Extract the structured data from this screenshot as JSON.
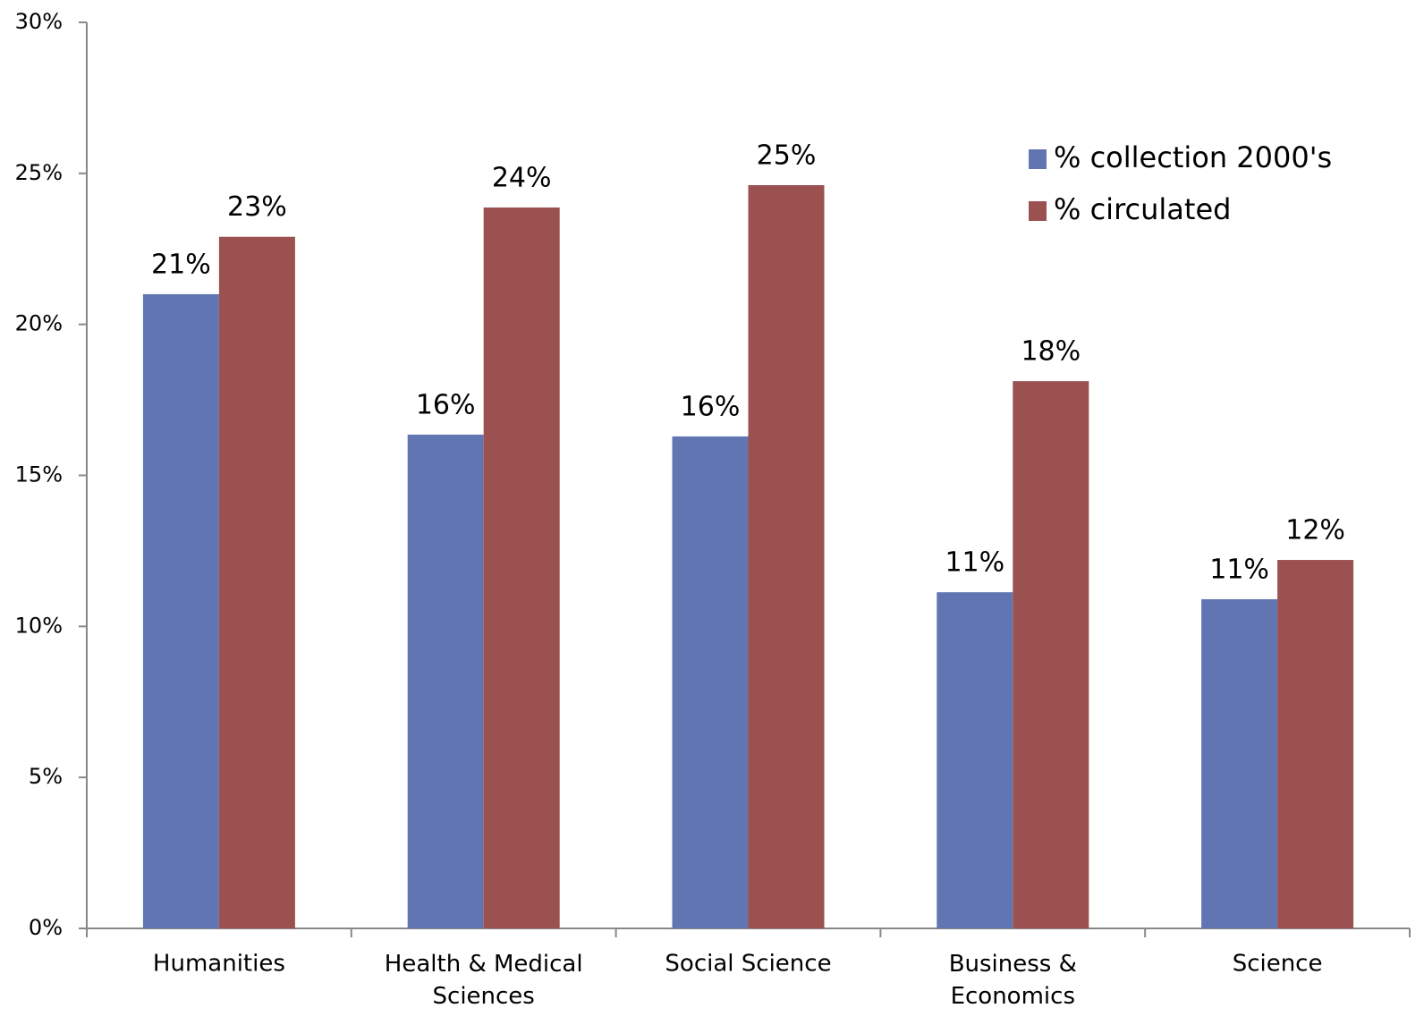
{
  "chart_data": {
    "type": "bar",
    "categories": [
      "Humanities",
      "Health & Medical Sciences",
      "Social Science",
      "Business & Economics",
      "Science"
    ],
    "series": [
      {
        "name": "% collection 2000's",
        "color": "#6175b3",
        "values": [
          21.0,
          16.35,
          16.29,
          11.13,
          10.9
        ],
        "value_labels": [
          "21%",
          "16%",
          "16%",
          "11%",
          "11%"
        ]
      },
      {
        "name": "% circulated",
        "color": "#9c5151",
        "values": [
          22.9,
          23.87,
          24.61,
          18.12,
          12.2
        ],
        "value_labels": [
          "23%",
          "24%",
          "25%",
          "18%",
          "12%"
        ]
      }
    ],
    "ylim": [
      0,
      30
    ],
    "yticks": [
      {
        "value": 0,
        "label": "0%"
      },
      {
        "value": 5,
        "label": "5%"
      },
      {
        "value": 10,
        "label": "10%"
      },
      {
        "value": 15,
        "label": "15%"
      },
      {
        "value": 20,
        "label": "20%"
      },
      {
        "value": 25,
        "label": "25%"
      },
      {
        "value": 30,
        "label": "30%"
      }
    ],
    "legend": "top-right"
  }
}
